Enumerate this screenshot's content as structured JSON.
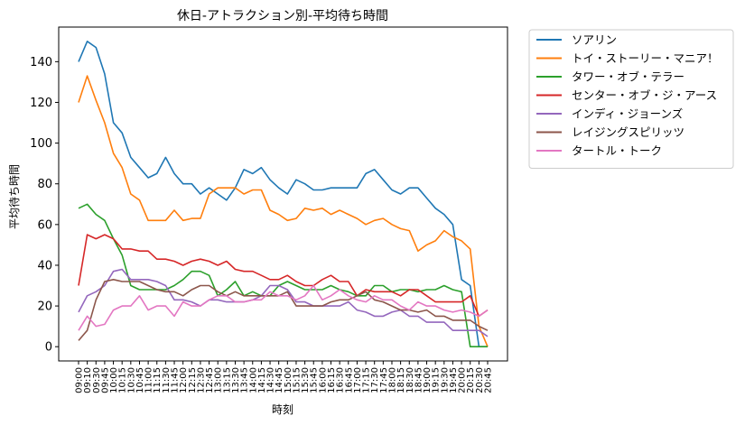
{
  "chart_data": {
    "type": "line",
    "title": "休日-アトラクション別-平均待ち時間",
    "xlabel": "時刻",
    "ylabel": "平均待ち時間",
    "ylim": [
      -7,
      157
    ],
    "yticks": [
      0,
      20,
      40,
      60,
      80,
      100,
      120,
      140
    ],
    "legend_position": "outside-right",
    "grid": false,
    "x": [
      "09:00",
      "09:10",
      "09:30",
      "09:45",
      "10:00",
      "10:15",
      "10:30",
      "10:45",
      "11:00",
      "11:15",
      "11:30",
      "11:45",
      "12:00",
      "12:15",
      "12:30",
      "12:45",
      "13:00",
      "13:15",
      "13:30",
      "13:45",
      "14:00",
      "14:15",
      "14:30",
      "14:45",
      "15:00",
      "15:15",
      "15:30",
      "15:45",
      "16:00",
      "16:15",
      "16:30",
      "16:45",
      "17:00",
      "17:15",
      "17:30",
      "17:45",
      "18:00",
      "18:15",
      "18:30",
      "18:45",
      "19:00",
      "19:15",
      "19:30",
      "19:45",
      "20:00",
      "20:15",
      "20:30",
      "20:45"
    ],
    "series": [
      {
        "name": "ソアリン",
        "color": "#1f77b4",
        "values": [
          140,
          150,
          147,
          134,
          110,
          105,
          93,
          88,
          83,
          85,
          93,
          85,
          80,
          80,
          75,
          78,
          75,
          72,
          78,
          87,
          85,
          88,
          82,
          78,
          75,
          82,
          80,
          77,
          77,
          78,
          78,
          78,
          78,
          85,
          87,
          82,
          77,
          75,
          78,
          78,
          73,
          68,
          65,
          60,
          33,
          30,
          0,
          0
        ]
      },
      {
        "name": "トイ・ストーリー・マニア！",
        "color": "#ff7f0e",
        "values": [
          120,
          133,
          121,
          110,
          95,
          88,
          75,
          72,
          62,
          62,
          62,
          67,
          62,
          63,
          63,
          75,
          78,
          78,
          78,
          75,
          77,
          77,
          67,
          65,
          62,
          63,
          68,
          67,
          68,
          65,
          67,
          65,
          63,
          60,
          62,
          63,
          60,
          58,
          57,
          47,
          50,
          52,
          57,
          54,
          52,
          48,
          10,
          0
        ]
      },
      {
        "name": "タワー・オブ・テラー",
        "color": "#2ca02c",
        "values": [
          68,
          70,
          65,
          62,
          53,
          45,
          30,
          28,
          28,
          28,
          28,
          30,
          33,
          37,
          37,
          35,
          25,
          28,
          32,
          25,
          27,
          25,
          25,
          30,
          32,
          30,
          28,
          28,
          28,
          30,
          28,
          27,
          25,
          25,
          30,
          30,
          27,
          28,
          28,
          27,
          28,
          28,
          30,
          28,
          27,
          0,
          0,
          0
        ]
      },
      {
        "name": "センター・オブ・ジ・アース",
        "color": "#d62728",
        "values": [
          30,
          55,
          53,
          55,
          53,
          48,
          48,
          47,
          47,
          43,
          43,
          42,
          40,
          42,
          43,
          42,
          40,
          42,
          38,
          37,
          37,
          35,
          33,
          33,
          35,
          32,
          30,
          30,
          33,
          35,
          32,
          32,
          25,
          28,
          27,
          27,
          27,
          25,
          28,
          28,
          25,
          22,
          22,
          22,
          22,
          25,
          15,
          18
        ]
      },
      {
        "name": "インディ・ジョーンズ",
        "color": "#9467bd",
        "values": [
          17,
          25,
          27,
          30,
          37,
          38,
          33,
          33,
          33,
          32,
          30,
          23,
          23,
          22,
          20,
          23,
          23,
          22,
          22,
          22,
          23,
          25,
          30,
          30,
          28,
          22,
          22,
          20,
          20,
          20,
          20,
          22,
          18,
          17,
          15,
          15,
          17,
          18,
          15,
          15,
          12,
          12,
          12,
          8,
          8,
          8,
          8,
          5
        ]
      },
      {
        "name": "レイジングスピリッツ",
        "color": "#8c564b",
        "values": [
          3,
          8,
          23,
          32,
          33,
          32,
          32,
          32,
          30,
          28,
          27,
          27,
          25,
          28,
          30,
          30,
          27,
          25,
          27,
          25,
          25,
          25,
          25,
          25,
          27,
          20,
          20,
          20,
          20,
          22,
          23,
          23,
          25,
          27,
          23,
          22,
          20,
          18,
          18,
          17,
          18,
          15,
          15,
          13,
          13,
          13,
          10,
          8
        ]
      },
      {
        "name": "タートル・トーク",
        "color": "#e377c2",
        "values": [
          8,
          15,
          10,
          11,
          18,
          20,
          20,
          25,
          18,
          20,
          20,
          15,
          22,
          20,
          20,
          23,
          25,
          25,
          22,
          22,
          23,
          23,
          27,
          25,
          25,
          23,
          25,
          30,
          23,
          25,
          28,
          25,
          23,
          22,
          25,
          23,
          23,
          20,
          18,
          22,
          20,
          20,
          18,
          17,
          18,
          17,
          15,
          18
        ]
      }
    ]
  }
}
